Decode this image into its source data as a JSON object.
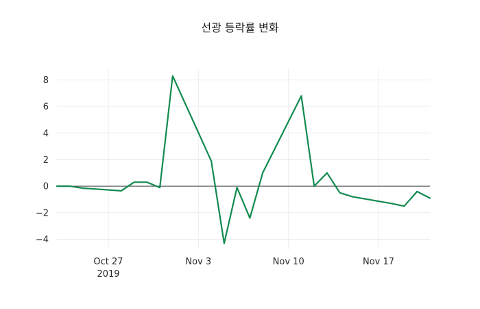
{
  "chart_data": {
    "type": "line",
    "title": "선광 등락률 변화",
    "xlabel": "",
    "ylabel": "",
    "x_dates": [
      "Oct 23",
      "Oct 24",
      "Oct 25",
      "Oct 28",
      "Oct 29",
      "Oct 30",
      "Oct 31",
      "Nov 1",
      "Nov 4",
      "Nov 5",
      "Nov 6",
      "Nov 7",
      "Nov 8",
      "Nov 11",
      "Nov 12",
      "Nov 13",
      "Nov 14",
      "Nov 15",
      "Nov 18",
      "Nov 19",
      "Nov 20",
      "Nov 21"
    ],
    "x_days": [
      0,
      1,
      2,
      5,
      6,
      7,
      8,
      9,
      12,
      13,
      14,
      15,
      16,
      19,
      20,
      21,
      22,
      23,
      26,
      27,
      28,
      29
    ],
    "values": [
      0.0,
      0.0,
      -0.15,
      -0.35,
      0.3,
      0.3,
      -0.1,
      8.3,
      1.9,
      -4.3,
      -0.1,
      -2.4,
      1.0,
      6.8,
      0.0,
      1.0,
      -0.5,
      -0.8,
      -1.3,
      -1.5,
      -0.4,
      -0.9
    ],
    "x_ticks": [
      {
        "day": 4,
        "label": "Oct 27",
        "sublabel": "2019"
      },
      {
        "day": 11,
        "label": "Nov 3",
        "sublabel": ""
      },
      {
        "day": 18,
        "label": "Nov 10",
        "sublabel": ""
      },
      {
        "day": 25,
        "label": "Nov 17",
        "sublabel": ""
      }
    ],
    "y_ticks": [
      {
        "value": -4,
        "label": "−4"
      },
      {
        "value": -2,
        "label": "−2"
      },
      {
        "value": 0,
        "label": "0"
      },
      {
        "value": 2,
        "label": "2"
      },
      {
        "value": 4,
        "label": "4"
      },
      {
        "value": 6,
        "label": "6"
      },
      {
        "value": 8,
        "label": "8"
      }
    ],
    "x_range": [
      0,
      29
    ],
    "ylim": [
      -4.75,
      8.85
    ],
    "grid": true,
    "legend_position": "none",
    "zero_line": true,
    "line_color": "#118a4e",
    "zero_line_color": "#3d3d3d",
    "grid_color": "#ececec",
    "tick_label_color": "#262626",
    "title_color": "#1a1a1a"
  }
}
